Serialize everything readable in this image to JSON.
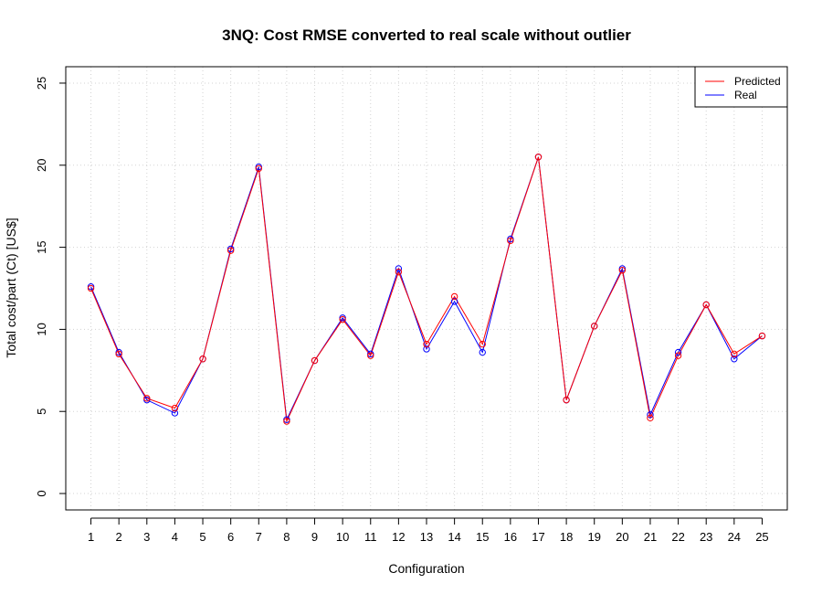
{
  "chart_data": {
    "type": "line",
    "title": "3NQ: Cost RMSE converted to real scale without outlier",
    "xlabel": "Configuration",
    "ylabel": "Total cost/part (Ct) [US$]",
    "x": [
      1,
      2,
      3,
      4,
      5,
      6,
      7,
      8,
      9,
      10,
      11,
      12,
      13,
      14,
      15,
      16,
      17,
      18,
      19,
      20,
      21,
      22,
      23,
      24,
      25
    ],
    "xlim": [
      0.1,
      25.9
    ],
    "ylim": [
      -1,
      26
    ],
    "yticks": [
      0,
      5,
      10,
      15,
      20,
      25
    ],
    "grid": true,
    "legend_position": "top-right",
    "series": [
      {
        "name": "Predicted",
        "color": "#ff0000",
        "values": [
          12.5,
          8.5,
          5.8,
          5.2,
          8.2,
          14.8,
          19.8,
          4.4,
          8.1,
          10.6,
          8.4,
          13.5,
          9.1,
          12.0,
          9.1,
          15.4,
          20.5,
          5.7,
          10.2,
          13.6,
          4.6,
          8.4,
          11.5,
          8.5,
          9.6
        ]
      },
      {
        "name": "Real",
        "color": "#0000ff",
        "values": [
          12.6,
          8.6,
          5.7,
          4.9,
          8.2,
          14.9,
          19.9,
          4.5,
          8.1,
          10.7,
          8.5,
          13.7,
          8.8,
          11.7,
          8.6,
          15.5,
          20.5,
          5.7,
          10.2,
          13.7,
          4.8,
          8.6,
          11.5,
          8.2,
          9.6
        ]
      }
    ]
  }
}
